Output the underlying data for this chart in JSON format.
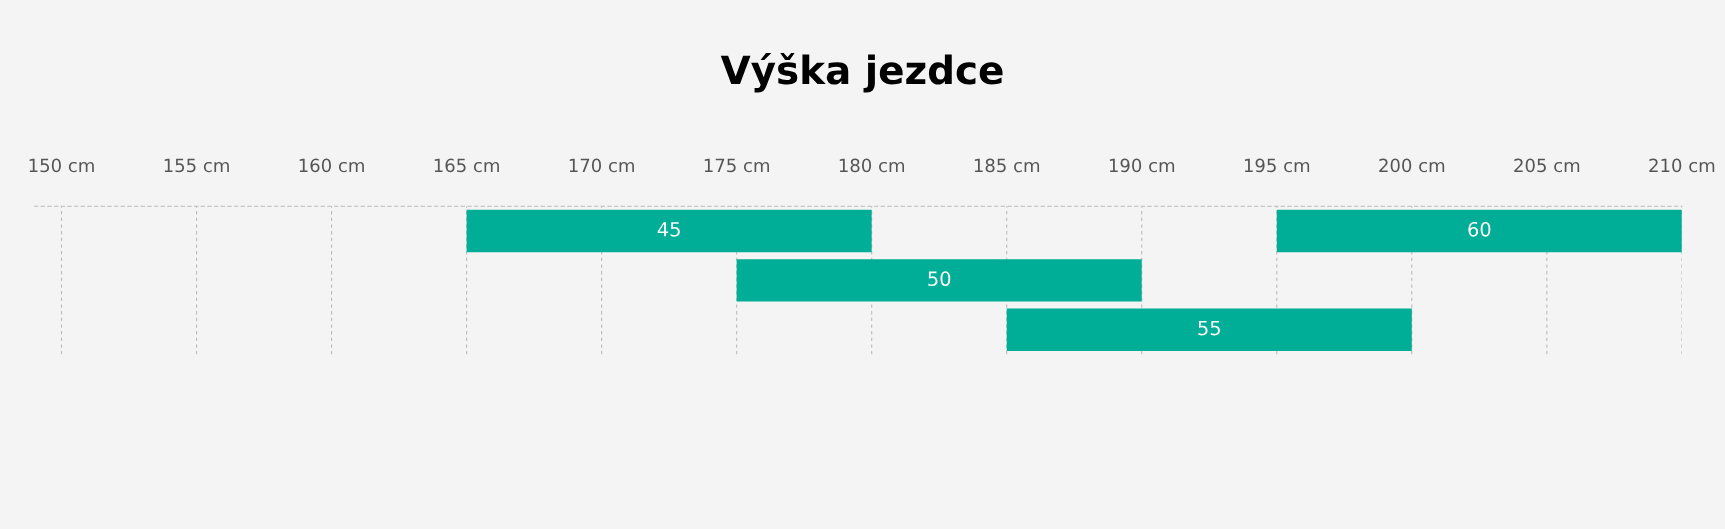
{
  "chart_data": {
    "type": "bar",
    "orientation": "horizontal",
    "title": "Výška jezdce",
    "categories": [
      null,
      null,
      null
    ],
    "series": [
      {
        "name": "45",
        "color": "#00ae97",
        "values": [
          15,
          null,
          null
        ],
        "base": [
          165,
          null,
          null
        ]
      },
      {
        "name": "50",
        "color": "#00ae97",
        "values": [
          null,
          15,
          null
        ],
        "base": [
          null,
          175,
          null
        ]
      },
      {
        "name": "55",
        "color": "#00ae97",
        "values": [
          null,
          null,
          15
        ],
        "base": [
          null,
          null,
          185
        ]
      },
      {
        "name": "60",
        "color": "#00ae97",
        "values": [
          15,
          null,
          null
        ],
        "base": [
          195,
          null,
          null
        ]
      }
    ],
    "xlim": [
      149,
      210
    ],
    "xticks": [
      {
        "value": 150,
        "label": "150 cm"
      },
      {
        "value": 155,
        "label": "155 cm"
      },
      {
        "value": 160,
        "label": "160 cm"
      },
      {
        "value": 165,
        "label": "165 cm"
      },
      {
        "value": 170,
        "label": "170 cm"
      },
      {
        "value": 175,
        "label": "175 cm"
      },
      {
        "value": 180,
        "label": "180 cm"
      },
      {
        "value": 185,
        "label": "185 cm"
      },
      {
        "value": 190,
        "label": "190 cm"
      },
      {
        "value": 195,
        "label": "195 cm"
      },
      {
        "value": 200,
        "label": "200 cm"
      },
      {
        "value": 205,
        "label": "205 cm"
      },
      {
        "value": 210,
        "label": "210 cm"
      }
    ],
    "grid": "x",
    "legend": false
  }
}
